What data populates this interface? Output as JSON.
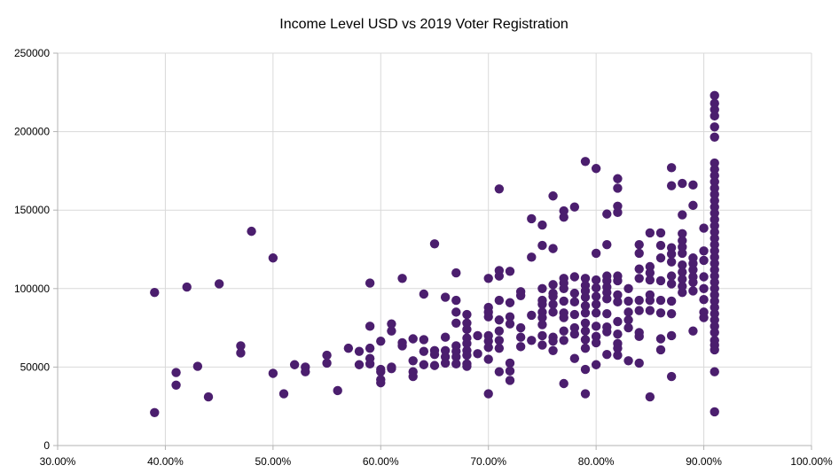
{
  "chart_data": {
    "type": "scatter",
    "title": "Income Level USD vs 2019 Voter Registration",
    "xlabel": "",
    "ylabel": "",
    "xlim": [
      0.3,
      1.0
    ],
    "ylim": [
      0,
      250000
    ],
    "x_ticks": [
      0.3,
      0.4,
      0.5,
      0.6,
      0.7,
      0.8,
      0.9,
      1.0
    ],
    "x_tick_labels": [
      "30.00%",
      "40.00%",
      "50.00%",
      "60.00%",
      "70.00%",
      "80.00%",
      "90.00%",
      "100.00%"
    ],
    "y_ticks": [
      0,
      50000,
      100000,
      150000,
      200000,
      250000
    ],
    "y_tick_labels": [
      "0",
      "50000",
      "100000",
      "150000",
      "200000",
      "250000"
    ],
    "grid": true,
    "legend": "none",
    "marker_color": "#4B1E6E",
    "series": [
      {
        "name": "",
        "points": [
          [
            0.39,
            97500
          ],
          [
            0.39,
            21000
          ],
          [
            0.41,
            46500
          ],
          [
            0.41,
            38500
          ],
          [
            0.42,
            101000
          ],
          [
            0.43,
            50500
          ],
          [
            0.44,
            31000
          ],
          [
            0.45,
            103000
          ],
          [
            0.47,
            63500
          ],
          [
            0.47,
            59000
          ],
          [
            0.48,
            136500
          ],
          [
            0.5,
            119500
          ],
          [
            0.5,
            46000
          ],
          [
            0.51,
            33000
          ],
          [
            0.52,
            51500
          ],
          [
            0.53,
            50000
          ],
          [
            0.53,
            47000
          ],
          [
            0.55,
            57500
          ],
          [
            0.55,
            52500
          ],
          [
            0.56,
            35000
          ],
          [
            0.57,
            62000
          ],
          [
            0.58,
            60000
          ],
          [
            0.58,
            51500
          ],
          [
            0.59,
            103500
          ],
          [
            0.59,
            76000
          ],
          [
            0.59,
            62000
          ],
          [
            0.59,
            55500
          ],
          [
            0.59,
            52000
          ],
          [
            0.6,
            66500
          ],
          [
            0.6,
            48500
          ],
          [
            0.6,
            47000
          ],
          [
            0.6,
            42000
          ],
          [
            0.6,
            40000
          ],
          [
            0.61,
            77500
          ],
          [
            0.61,
            73000
          ],
          [
            0.61,
            50000
          ],
          [
            0.61,
            49000
          ],
          [
            0.62,
            106500
          ],
          [
            0.62,
            65500
          ],
          [
            0.62,
            63500
          ],
          [
            0.63,
            68000
          ],
          [
            0.63,
            54000
          ],
          [
            0.63,
            47000
          ],
          [
            0.63,
            44000
          ],
          [
            0.64,
            96500
          ],
          [
            0.64,
            67500
          ],
          [
            0.64,
            60000
          ],
          [
            0.64,
            51500
          ],
          [
            0.65,
            128500
          ],
          [
            0.65,
            60500
          ],
          [
            0.65,
            58000
          ],
          [
            0.65,
            51000
          ],
          [
            0.66,
            94500
          ],
          [
            0.66,
            69000
          ],
          [
            0.66,
            60500
          ],
          [
            0.66,
            56500
          ],
          [
            0.66,
            52500
          ],
          [
            0.67,
            110000
          ],
          [
            0.67,
            92500
          ],
          [
            0.67,
            85000
          ],
          [
            0.67,
            78000
          ],
          [
            0.67,
            63500
          ],
          [
            0.67,
            60000
          ],
          [
            0.67,
            56500
          ],
          [
            0.67,
            52000
          ],
          [
            0.68,
            83500
          ],
          [
            0.68,
            78000
          ],
          [
            0.68,
            74000
          ],
          [
            0.68,
            68500
          ],
          [
            0.68,
            65000
          ],
          [
            0.68,
            60500
          ],
          [
            0.68,
            57500
          ],
          [
            0.68,
            52000
          ],
          [
            0.68,
            50500
          ],
          [
            0.69,
            70000
          ],
          [
            0.69,
            58500
          ],
          [
            0.7,
            106500
          ],
          [
            0.7,
            88000
          ],
          [
            0.7,
            85000
          ],
          [
            0.7,
            82000
          ],
          [
            0.7,
            70000
          ],
          [
            0.7,
            66500
          ],
          [
            0.7,
            62500
          ],
          [
            0.7,
            55000
          ],
          [
            0.7,
            33000
          ],
          [
            0.71,
            163500
          ],
          [
            0.71,
            111500
          ],
          [
            0.71,
            108000
          ],
          [
            0.71,
            92500
          ],
          [
            0.71,
            80000
          ],
          [
            0.71,
            73000
          ],
          [
            0.71,
            67000
          ],
          [
            0.71,
            62000
          ],
          [
            0.71,
            47000
          ],
          [
            0.72,
            111000
          ],
          [
            0.72,
            91000
          ],
          [
            0.72,
            82000
          ],
          [
            0.72,
            77500
          ],
          [
            0.72,
            52500
          ],
          [
            0.72,
            47500
          ],
          [
            0.72,
            41500
          ],
          [
            0.73,
            98000
          ],
          [
            0.73,
            95500
          ],
          [
            0.73,
            75000
          ],
          [
            0.73,
            69000
          ],
          [
            0.73,
            63000
          ],
          [
            0.74,
            144500
          ],
          [
            0.74,
            120000
          ],
          [
            0.74,
            83000
          ],
          [
            0.74,
            67000
          ],
          [
            0.75,
            140500
          ],
          [
            0.75,
            127500
          ],
          [
            0.75,
            100000
          ],
          [
            0.75,
            92500
          ],
          [
            0.75,
            90000
          ],
          [
            0.75,
            85000
          ],
          [
            0.75,
            81500
          ],
          [
            0.75,
            77000
          ],
          [
            0.75,
            70000
          ],
          [
            0.75,
            64000
          ],
          [
            0.76,
            159000
          ],
          [
            0.76,
            125500
          ],
          [
            0.76,
            102500
          ],
          [
            0.76,
            97000
          ],
          [
            0.76,
            95000
          ],
          [
            0.76,
            90000
          ],
          [
            0.76,
            85000
          ],
          [
            0.76,
            69000
          ],
          [
            0.76,
            66500
          ],
          [
            0.76,
            60500
          ],
          [
            0.77,
            149500
          ],
          [
            0.77,
            145500
          ],
          [
            0.77,
            106500
          ],
          [
            0.77,
            103500
          ],
          [
            0.77,
            100000
          ],
          [
            0.77,
            92000
          ],
          [
            0.77,
            84500
          ],
          [
            0.77,
            81500
          ],
          [
            0.77,
            73000
          ],
          [
            0.77,
            67000
          ],
          [
            0.77,
            39500
          ],
          [
            0.78,
            152000
          ],
          [
            0.78,
            107500
          ],
          [
            0.78,
            97000
          ],
          [
            0.78,
            91500
          ],
          [
            0.78,
            83500
          ],
          [
            0.78,
            75000
          ],
          [
            0.78,
            71000
          ],
          [
            0.78,
            55500
          ],
          [
            0.79,
            181000
          ],
          [
            0.79,
            106500
          ],
          [
            0.79,
            102000
          ],
          [
            0.79,
            98500
          ],
          [
            0.79,
            94500
          ],
          [
            0.79,
            89000
          ],
          [
            0.79,
            84500
          ],
          [
            0.79,
            78000
          ],
          [
            0.79,
            73000
          ],
          [
            0.79,
            67500
          ],
          [
            0.79,
            62000
          ],
          [
            0.79,
            48500
          ],
          [
            0.79,
            33000
          ],
          [
            0.8,
            176500
          ],
          [
            0.8,
            122500
          ],
          [
            0.8,
            105500
          ],
          [
            0.8,
            100500
          ],
          [
            0.8,
            95000
          ],
          [
            0.8,
            90000
          ],
          [
            0.8,
            84500
          ],
          [
            0.8,
            76000
          ],
          [
            0.8,
            69500
          ],
          [
            0.8,
            65500
          ],
          [
            0.8,
            51500
          ],
          [
            0.81,
            147500
          ],
          [
            0.81,
            128000
          ],
          [
            0.81,
            108000
          ],
          [
            0.81,
            105000
          ],
          [
            0.81,
            101000
          ],
          [
            0.81,
            97500
          ],
          [
            0.81,
            93500
          ],
          [
            0.81,
            84000
          ],
          [
            0.81,
            75500
          ],
          [
            0.81,
            72500
          ],
          [
            0.81,
            58000
          ],
          [
            0.82,
            170000
          ],
          [
            0.82,
            164000
          ],
          [
            0.82,
            152500
          ],
          [
            0.82,
            148500
          ],
          [
            0.82,
            108000
          ],
          [
            0.82,
            105000
          ],
          [
            0.82,
            96000
          ],
          [
            0.82,
            91500
          ],
          [
            0.82,
            79000
          ],
          [
            0.82,
            71000
          ],
          [
            0.82,
            65000
          ],
          [
            0.82,
            62000
          ],
          [
            0.82,
            57500
          ],
          [
            0.83,
            100000
          ],
          [
            0.83,
            92000
          ],
          [
            0.83,
            85000
          ],
          [
            0.83,
            80000
          ],
          [
            0.83,
            75000
          ],
          [
            0.83,
            54000
          ],
          [
            0.84,
            128000
          ],
          [
            0.84,
            122500
          ],
          [
            0.84,
            112500
          ],
          [
            0.84,
            106500
          ],
          [
            0.84,
            92500
          ],
          [
            0.84,
            86000
          ],
          [
            0.84,
            72000
          ],
          [
            0.84,
            69500
          ],
          [
            0.84,
            52500
          ],
          [
            0.85,
            135500
          ],
          [
            0.85,
            114000
          ],
          [
            0.85,
            110000
          ],
          [
            0.85,
            105500
          ],
          [
            0.85,
            96000
          ],
          [
            0.85,
            92500
          ],
          [
            0.85,
            86000
          ],
          [
            0.85,
            31000
          ],
          [
            0.86,
            135500
          ],
          [
            0.86,
            127500
          ],
          [
            0.86,
            119500
          ],
          [
            0.86,
            105000
          ],
          [
            0.86,
            92500
          ],
          [
            0.86,
            84500
          ],
          [
            0.86,
            68000
          ],
          [
            0.86,
            61000
          ],
          [
            0.87,
            177000
          ],
          [
            0.87,
            165500
          ],
          [
            0.87,
            126000
          ],
          [
            0.87,
            122000
          ],
          [
            0.87,
            117000
          ],
          [
            0.87,
            108000
          ],
          [
            0.87,
            103000
          ],
          [
            0.87,
            92000
          ],
          [
            0.87,
            84000
          ],
          [
            0.87,
            70000
          ],
          [
            0.87,
            44000
          ],
          [
            0.88,
            167000
          ],
          [
            0.88,
            147000
          ],
          [
            0.88,
            135000
          ],
          [
            0.88,
            130500
          ],
          [
            0.88,
            126500
          ],
          [
            0.88,
            122500
          ],
          [
            0.88,
            115000
          ],
          [
            0.88,
            110500
          ],
          [
            0.88,
            106000
          ],
          [
            0.88,
            101500
          ],
          [
            0.88,
            97500
          ],
          [
            0.89,
            166000
          ],
          [
            0.89,
            153000
          ],
          [
            0.89,
            119500
          ],
          [
            0.89,
            116000
          ],
          [
            0.89,
            112000
          ],
          [
            0.89,
            107500
          ],
          [
            0.89,
            104000
          ],
          [
            0.89,
            98500
          ],
          [
            0.89,
            73000
          ],
          [
            0.9,
            138500
          ],
          [
            0.9,
            124000
          ],
          [
            0.9,
            118000
          ],
          [
            0.9,
            107500
          ],
          [
            0.9,
            100000
          ],
          [
            0.9,
            93000
          ],
          [
            0.9,
            85000
          ],
          [
            0.9,
            81500
          ],
          [
            0.91,
            223000
          ],
          [
            0.91,
            218000
          ],
          [
            0.91,
            214000
          ],
          [
            0.91,
            210000
          ],
          [
            0.91,
            203000
          ],
          [
            0.91,
            196500
          ],
          [
            0.91,
            180000
          ],
          [
            0.91,
            176000
          ],
          [
            0.91,
            172000
          ],
          [
            0.91,
            168000
          ],
          [
            0.91,
            164000
          ],
          [
            0.91,
            160000
          ],
          [
            0.91,
            156000
          ],
          [
            0.91,
            152000
          ],
          [
            0.91,
            148000
          ],
          [
            0.91,
            144000
          ],
          [
            0.91,
            140000
          ],
          [
            0.91,
            136000
          ],
          [
            0.91,
            132000
          ],
          [
            0.91,
            128000
          ],
          [
            0.91,
            124000
          ],
          [
            0.91,
            120000
          ],
          [
            0.91,
            116000
          ],
          [
            0.91,
            112000
          ],
          [
            0.91,
            108000
          ],
          [
            0.91,
            104000
          ],
          [
            0.91,
            100000
          ],
          [
            0.91,
            96000
          ],
          [
            0.91,
            92000
          ],
          [
            0.91,
            88000
          ],
          [
            0.91,
            84000
          ],
          [
            0.91,
            80000
          ],
          [
            0.91,
            76000
          ],
          [
            0.91,
            72000
          ],
          [
            0.91,
            67000
          ],
          [
            0.91,
            64000
          ],
          [
            0.91,
            61000
          ],
          [
            0.91,
            47000
          ],
          [
            0.91,
            21500
          ]
        ]
      }
    ]
  }
}
